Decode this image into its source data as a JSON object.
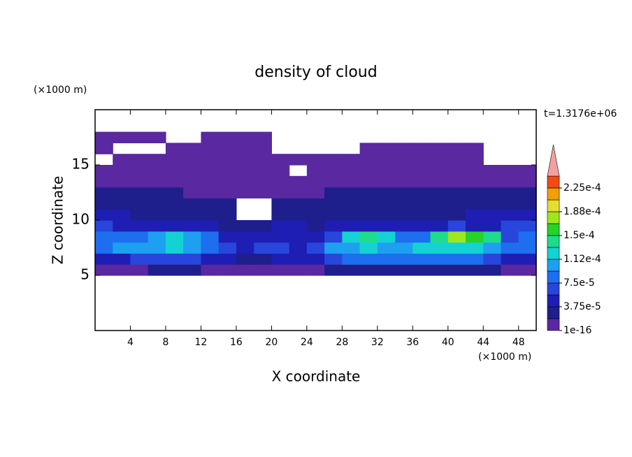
{
  "chart_data": {
    "type": "contour",
    "title": "density of cloud",
    "annotation": "t=1.3176e+06",
    "xlabel": "X coordinate",
    "ylabel": "Z coordinate",
    "xunit": "(×1000 m)",
    "yunit": "(×1000 m)",
    "xlim": [
      0,
      50
    ],
    "ylim": [
      0,
      20
    ],
    "xticks": [
      4,
      8,
      12,
      16,
      20,
      24,
      28,
      32,
      36,
      40,
      44,
      48
    ],
    "yticks": [
      5,
      10,
      15
    ],
    "grid": false,
    "x": [
      1,
      3,
      5,
      7,
      9,
      11,
      13,
      15,
      17,
      19,
      21,
      23,
      25,
      27,
      29,
      31,
      33,
      35,
      37,
      39,
      41,
      43,
      45,
      47,
      49
    ],
    "z": [
      5.5,
      6.5,
      7.5,
      8.5,
      9.5,
      10.5,
      11.5,
      12.5,
      13.5,
      14.5,
      15.5,
      16.5,
      17.5
    ],
    "values": [
      [
        1e-05,
        1e-05,
        1e-05,
        2e-05,
        2e-05,
        2e-05,
        1e-05,
        1e-05,
        1e-05,
        1e-05,
        1e-05,
        1e-05,
        1e-05,
        2e-05,
        2e-05,
        2e-05,
        2e-05,
        2e-05,
        2e-05,
        2e-05,
        2e-05,
        2e-05,
        2e-05,
        1e-05,
        1e-05
      ],
      [
        5e-05,
        5e-05,
        6e-05,
        6e-05,
        6e-05,
        6e-05,
        4e-05,
        4e-05,
        3e-05,
        3e-05,
        4e-05,
        4e-05,
        5e-05,
        7e-05,
        8e-05,
        8e-05,
        8e-05,
        8e-05,
        8e-05,
        8e-05,
        8e-05,
        8e-05,
        7e-05,
        5e-05,
        5e-05
      ],
      [
        9e-05,
        0.0001,
        0.0001,
        0.00011,
        0.00012,
        0.0001,
        8e-05,
        6e-05,
        5e-05,
        6e-05,
        7e-05,
        5e-05,
        7e-05,
        0.0001,
        0.00011,
        0.00012,
        0.00011,
        0.0001,
        0.00012,
        0.00013,
        0.00013,
        0.00013,
        0.00011,
        8e-05,
        9e-05
      ],
      [
        8e-05,
        9e-05,
        9e-05,
        0.0001,
        0.00012,
        0.0001,
        8e-05,
        5e-05,
        4e-05,
        4e-05,
        5e-05,
        4e-05,
        5e-05,
        7e-05,
        0.00012,
        0.00014,
        0.00013,
        9e-05,
        8e-05,
        0.00014,
        0.00017,
        0.00016,
        0.00014,
        7e-05,
        8e-05
      ],
      [
        6e-05,
        5e-05,
        5e-05,
        5e-05,
        5e-05,
        4e-05,
        4e-05,
        3e-05,
        3e-05,
        3e-05,
        4e-05,
        4e-05,
        3e-05,
        4e-05,
        5e-05,
        4e-05,
        4e-05,
        4e-05,
        4e-05,
        5e-05,
        6e-05,
        5e-05,
        5e-05,
        6e-05,
        6e-05
      ],
      [
        4e-05,
        4e-05,
        3e-05,
        3e-05,
        3e-05,
        3e-05,
        3e-05,
        3e-05,
        null,
        null,
        3e-05,
        3e-05,
        3e-05,
        3e-05,
        3e-05,
        3e-05,
        3e-05,
        3e-05,
        3e-05,
        3e-05,
        3e-05,
        4e-05,
        4e-05,
        4e-05,
        4e-05
      ],
      [
        3e-05,
        3e-05,
        3e-05,
        3e-05,
        2.5e-05,
        2.5e-05,
        2.5e-05,
        2e-05,
        null,
        null,
        2e-05,
        2e-05,
        2e-05,
        2.5e-05,
        2.5e-05,
        2.5e-05,
        2.5e-05,
        2.5e-05,
        2.5e-05,
        2.5e-05,
        2.5e-05,
        3e-05,
        3e-05,
        3e-05,
        3e-05
      ],
      [
        2e-05,
        2e-05,
        2e-05,
        2e-05,
        2e-05,
        1.5e-05,
        1.5e-05,
        1.5e-05,
        1e-05,
        1e-05,
        1.5e-05,
        1.5e-05,
        1.5e-05,
        2e-05,
        2e-05,
        2e-05,
        2e-05,
        2e-05,
        2e-05,
        2e-05,
        2e-05,
        2e-05,
        2e-05,
        2e-05,
        2e-05
      ],
      [
        1.5e-05,
        1.5e-05,
        1.5e-05,
        1.5e-05,
        1e-05,
        1e-05,
        1e-05,
        1e-05,
        1e-05,
        1e-05,
        1e-05,
        1e-05,
        1e-05,
        1e-05,
        1e-05,
        1e-05,
        1e-05,
        1e-05,
        1e-05,
        1e-05,
        1e-05,
        1.5e-05,
        1.5e-05,
        1.5e-05,
        1.5e-05
      ],
      [
        1e-05,
        1e-05,
        1e-05,
        1e-05,
        1e-05,
        1e-05,
        1e-05,
        1e-05,
        1e-05,
        1e-05,
        1e-05,
        null,
        1e-05,
        1e-05,
        1e-05,
        1e-05,
        1e-05,
        1e-05,
        1e-05,
        1e-05,
        1e-05,
        1e-05,
        1e-05,
        1e-05,
        1e-05
      ],
      [
        null,
        5e-06,
        5e-06,
        5e-06,
        5e-06,
        5e-06,
        5e-06,
        5e-06,
        5e-06,
        5e-06,
        5e-06,
        5e-06,
        5e-06,
        5e-06,
        5e-06,
        5e-06,
        5e-06,
        5e-06,
        5e-06,
        5e-06,
        5e-06,
        5e-06,
        null,
        null,
        null
      ],
      [
        5e-06,
        null,
        null,
        null,
        5e-06,
        5e-06,
        5e-06,
        5e-06,
        5e-06,
        5e-06,
        null,
        null,
        null,
        null,
        null,
        5e-06,
        5e-06,
        5e-06,
        5e-06,
        5e-06,
        5e-06,
        5e-06,
        null,
        null,
        null
      ],
      [
        5e-06,
        5e-06,
        5e-06,
        5e-06,
        null,
        null,
        5e-06,
        5e-06,
        5e-06,
        5e-06,
        null,
        null,
        null,
        null,
        null,
        null,
        null,
        null,
        null,
        null,
        null,
        null,
        null,
        null,
        null
      ]
    ],
    "colorbar": {
      "levels": [
        1e-16,
        1.875e-05,
        3.75e-05,
        5.625e-05,
        7.5e-05,
        9.375e-05,
        0.0001125,
        0.00013125,
        0.00015,
        0.00016875,
        0.0001875,
        0.00020625,
        0.000225,
        0.00024375
      ],
      "colors": [
        "#5a28a0",
        "#1e1e8c",
        "#1e1eb4",
        "#2846dc",
        "#1e6ef0",
        "#1ea0f0",
        "#14d2d2",
        "#1edc8c",
        "#28d228",
        "#a0e61e",
        "#e6dc32",
        "#f0a000",
        "#f04b14"
      ],
      "over_color": "#f4a0a0",
      "ticks": [
        {
          "value": 1e-16,
          "label": "1e-16"
        },
        {
          "value": 3.75e-05,
          "label": "3.75e-5"
        },
        {
          "value": 7.5e-05,
          "label": "7.5e-5"
        },
        {
          "value": 0.0001125,
          "label": "1.12e-4"
        },
        {
          "value": 0.00015,
          "label": "1.5e-4"
        },
        {
          "value": 0.0001875,
          "label": "1.88e-4"
        },
        {
          "value": 0.000225,
          "label": "2.25e-4"
        }
      ]
    }
  }
}
